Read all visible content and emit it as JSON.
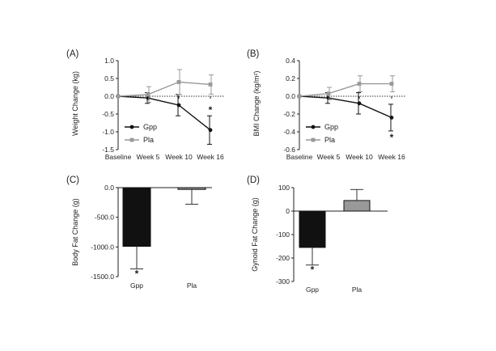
{
  "chart_data": [
    {
      "panel": "(A)",
      "type": "line",
      "title": "",
      "xlabel": "",
      "ylabel": "Weight Change (kg)",
      "categories": [
        "Baseline",
        "Week 5",
        "Week 10",
        "Week 16"
      ],
      "ylim": [
        -1.5,
        1.0
      ],
      "yticks": [
        "1.0",
        "0.5",
        "0.0",
        "-0.5",
        "-1.0",
        "-1.5"
      ],
      "legend": "left",
      "zero_line": "dotted",
      "significance": [
        {
          "series": "Gpp",
          "category": "Week 16",
          "mark": "*"
        }
      ],
      "series": [
        {
          "name": "Gpp",
          "color": "#111111",
          "values": [
            0.0,
            -0.05,
            -0.25,
            -0.95
          ],
          "error": [
            0.0,
            0.15,
            0.3,
            0.4
          ]
        },
        {
          "name": "Pla",
          "color": "#999999",
          "values": [
            0.0,
            0.05,
            0.4,
            0.33
          ],
          "error": [
            0.0,
            0.22,
            0.35,
            0.27
          ]
        }
      ]
    },
    {
      "panel": "(B)",
      "type": "line",
      "title": "",
      "xlabel": "",
      "ylabel": "BMI Change (kg/m²)",
      "categories": [
        "Baseline",
        "Week 5",
        "Week 10",
        "Week 16"
      ],
      "ylim": [
        -0.6,
        0.4
      ],
      "yticks": [
        "0.4",
        "0.2",
        "0.0",
        "-0.2",
        "-0.4",
        "-0.6"
      ],
      "legend": "left",
      "zero_line": "dotted",
      "significance": [
        {
          "series": "Gpp",
          "category": "Week 16",
          "mark": "*"
        }
      ],
      "series": [
        {
          "name": "Gpp",
          "color": "#111111",
          "values": [
            0.0,
            -0.02,
            -0.08,
            -0.24
          ],
          "error": [
            0.0,
            0.06,
            0.12,
            0.15
          ]
        },
        {
          "name": "Pla",
          "color": "#999999",
          "values": [
            0.0,
            0.03,
            0.14,
            0.14
          ],
          "error": [
            0.0,
            0.07,
            0.09,
            0.09
          ]
        }
      ]
    },
    {
      "panel": "(C)",
      "type": "bar",
      "title": "",
      "xlabel": "",
      "ylabel": "Body Fat Change (g)",
      "categories": [
        "Gpp",
        "Pla"
      ],
      "ylim": [
        -1500,
        0
      ],
      "yticks": [
        "0.0",
        "-500.0",
        "-1000.0",
        "-1500.0"
      ],
      "significance": [
        {
          "category": "Gpp",
          "mark": "*"
        }
      ],
      "values": [
        -990,
        -30
      ],
      "error": [
        380,
        250
      ],
      "colors": [
        "#111111",
        "#999999"
      ]
    },
    {
      "panel": "(D)",
      "type": "bar",
      "title": "",
      "xlabel": "",
      "ylabel": "Gynoid Fat Change (g)",
      "categories": [
        "Gpp",
        "Pla"
      ],
      "ylim": [
        -300,
        100
      ],
      "yticks": [
        "100",
        "0",
        "-100",
        "-200",
        "-300"
      ],
      "significance": [
        {
          "category": "Gpp",
          "mark": "*"
        }
      ],
      "values": [
        -155,
        45
      ],
      "error": [
        75,
        47
      ],
      "colors": [
        "#111111",
        "#999999"
      ]
    }
  ]
}
